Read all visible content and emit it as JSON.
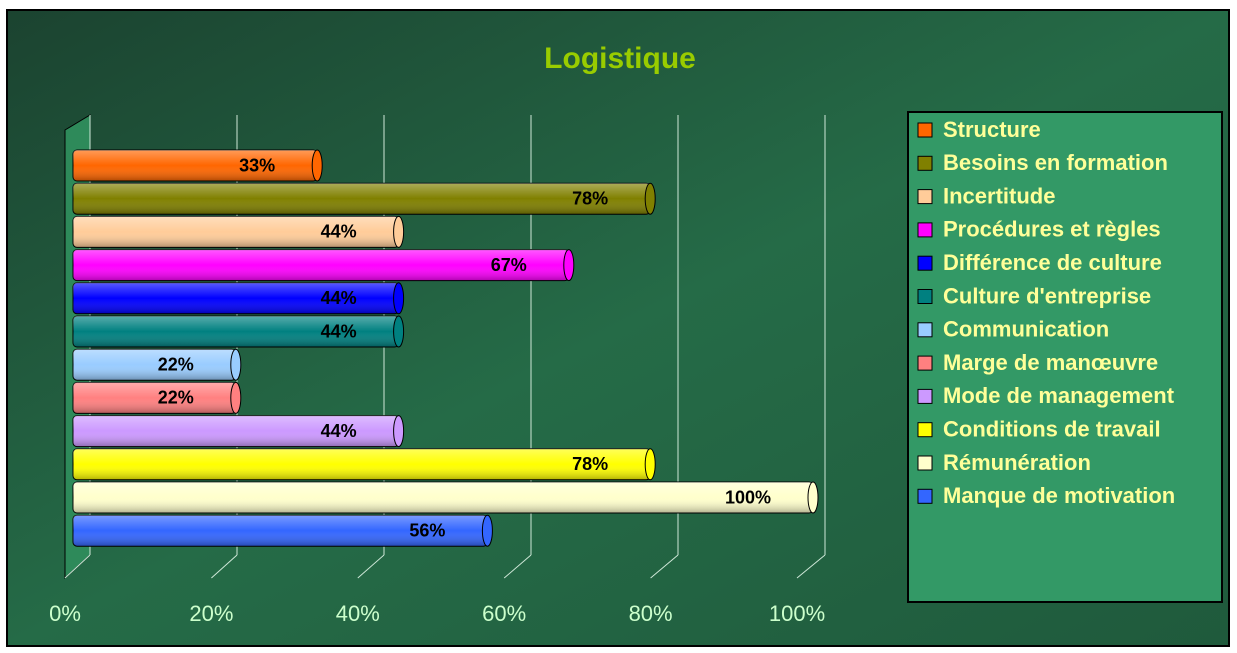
{
  "chart_data": {
    "type": "bar",
    "orientation": "horizontal",
    "title": "Logistique",
    "categories": [
      "Structure",
      "Besoins en formation",
      "Incertitude",
      "Procédures et règles",
      "Différence de culture",
      "Culture d'entreprise",
      "Communication",
      "Marge de manœuvre",
      "Mode de management",
      "Conditions de travail",
      "Rémunération",
      "Manque de motivation"
    ],
    "values": [
      33,
      78,
      44,
      67,
      44,
      44,
      22,
      22,
      44,
      78,
      100,
      56
    ],
    "value_labels": [
      "33%",
      "78%",
      "44%",
      "67%",
      "44%",
      "44%",
      "22%",
      "22%",
      "44%",
      "78%",
      "100%",
      "56%"
    ],
    "colors": [
      "#ff6600",
      "#808000",
      "#ffcc99",
      "#ff00ff",
      "#0000ff",
      "#008080",
      "#99ccff",
      "#ff8080",
      "#cc99ff",
      "#ffff00",
      "#ffffcc",
      "#3366ff"
    ],
    "xlim": [
      0,
      100
    ],
    "xticks": [
      {
        "value": 0,
        "label": "0%"
      },
      {
        "value": 20,
        "label": "20%"
      },
      {
        "value": 40,
        "label": "40%"
      },
      {
        "value": 60,
        "label": "60%"
      },
      {
        "value": 80,
        "label": "80%"
      },
      {
        "value": 100,
        "label": "100%"
      }
    ],
    "grid": true,
    "legend": "right"
  }
}
